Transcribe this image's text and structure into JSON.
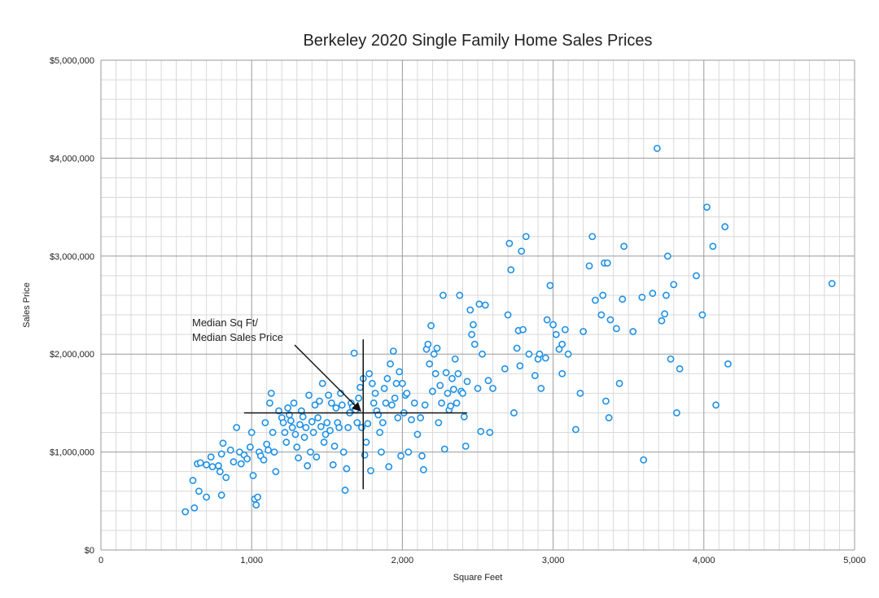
{
  "colors": {
    "point": "#1E90E6",
    "grid_major": "#9a9a9a",
    "grid_minor": "#d9d9d9",
    "median_lines": "#111111"
  },
  "chart_data": {
    "type": "scatter",
    "title": "Berkeley 2020 Single Family Home Sales Prices",
    "xlabel": "Square Feet",
    "ylabel": "Sales Price",
    "xlim": [
      0,
      5000
    ],
    "ylim": [
      0,
      5000000
    ],
    "x_ticks": [
      0,
      1000,
      2000,
      3000,
      4000,
      5000
    ],
    "x_tick_labels": [
      "0",
      "1,000",
      "2,000",
      "3,000",
      "4,000",
      "5,000"
    ],
    "y_ticks": [
      0,
      1000000,
      2000000,
      3000000,
      4000000,
      5000000
    ],
    "y_tick_labels": [
      "$0",
      "$1,000,000",
      "$2,000,000",
      "$3,000,000",
      "$4,000,000",
      "$5,000,000"
    ],
    "grid": true,
    "annotation": {
      "line1": "Median Sq Ft/",
      "line2": "Median Sales Price",
      "median_x": 1740,
      "median_y": 1400000
    },
    "median_hline": {
      "x_from": 950,
      "x_to": 2430,
      "y": 1400000
    },
    "median_vline": {
      "x": 1740,
      "y_from": 620000,
      "y_to": 2150000
    },
    "points": [
      [
        560,
        390000
      ],
      [
        620,
        430000
      ],
      [
        650,
        600000
      ],
      [
        700,
        540000
      ],
      [
        610,
        710000
      ],
      [
        640,
        880000
      ],
      [
        660,
        890000
      ],
      [
        700,
        870000
      ],
      [
        740,
        850000
      ],
      [
        780,
        860000
      ],
      [
        730,
        950000
      ],
      [
        800,
        980000
      ],
      [
        810,
        1090000
      ],
      [
        790,
        800000
      ],
      [
        800,
        560000
      ],
      [
        830,
        740000
      ],
      [
        860,
        1020000
      ],
      [
        880,
        900000
      ],
      [
        900,
        1250000
      ],
      [
        920,
        1000000
      ],
      [
        930,
        880000
      ],
      [
        950,
        970000
      ],
      [
        970,
        930000
      ],
      [
        990,
        1050000
      ],
      [
        1000,
        1200000
      ],
      [
        1010,
        760000
      ],
      [
        1020,
        520000
      ],
      [
        1030,
        460000
      ],
      [
        1040,
        540000
      ],
      [
        1050,
        1000000
      ],
      [
        1060,
        960000
      ],
      [
        1080,
        920000
      ],
      [
        1090,
        1300000
      ],
      [
        1100,
        1080000
      ],
      [
        1110,
        1020000
      ],
      [
        1120,
        1500000
      ],
      [
        1130,
        1600000
      ],
      [
        1140,
        1200000
      ],
      [
        1150,
        1000000
      ],
      [
        1160,
        800000
      ],
      [
        1180,
        1420000
      ],
      [
        1200,
        1350000
      ],
      [
        1210,
        1300000
      ],
      [
        1220,
        1200000
      ],
      [
        1230,
        1100000
      ],
      [
        1240,
        1450000
      ],
      [
        1250,
        1380000
      ],
      [
        1260,
        1320000
      ],
      [
        1270,
        1250000
      ],
      [
        1280,
        1500000
      ],
      [
        1290,
        1180000
      ],
      [
        1300,
        1050000
      ],
      [
        1310,
        940000
      ],
      [
        1320,
        1280000
      ],
      [
        1330,
        1420000
      ],
      [
        1340,
        1360000
      ],
      [
        1350,
        1150000
      ],
      [
        1360,
        1250000
      ],
      [
        1370,
        860000
      ],
      [
        1380,
        1580000
      ],
      [
        1390,
        1000000
      ],
      [
        1400,
        1310000
      ],
      [
        1410,
        1200000
      ],
      [
        1420,
        1480000
      ],
      [
        1430,
        950000
      ],
      [
        1440,
        1350000
      ],
      [
        1450,
        1520000
      ],
      [
        1460,
        1260000
      ],
      [
        1470,
        1700000
      ],
      [
        1480,
        1100000
      ],
      [
        1490,
        1180000
      ],
      [
        1500,
        1300000
      ],
      [
        1510,
        1580000
      ],
      [
        1520,
        1220000
      ],
      [
        1530,
        1500000
      ],
      [
        1540,
        870000
      ],
      [
        1550,
        1060000
      ],
      [
        1560,
        1450000
      ],
      [
        1570,
        1300000
      ],
      [
        1580,
        1250000
      ],
      [
        1590,
        1600000
      ],
      [
        1600,
        1480000
      ],
      [
        1610,
        1000000
      ],
      [
        1620,
        610000
      ],
      [
        1630,
        830000
      ],
      [
        1640,
        1250000
      ],
      [
        1650,
        1400000
      ],
      [
        1660,
        1500000
      ],
      [
        1670,
        1460000
      ],
      [
        1680,
        2010000
      ],
      [
        1690,
        1430000
      ],
      [
        1700,
        1300000
      ],
      [
        1710,
        1550000
      ],
      [
        1720,
        1660000
      ],
      [
        1730,
        1250000
      ],
      [
        1740,
        1750000
      ],
      [
        1750,
        970000
      ],
      [
        1760,
        1100000
      ],
      [
        1770,
        1290000
      ],
      [
        1780,
        1800000
      ],
      [
        1790,
        810000
      ],
      [
        1800,
        1700000
      ],
      [
        1810,
        1500000
      ],
      [
        1820,
        1600000
      ],
      [
        1830,
        1420000
      ],
      [
        1840,
        1380000
      ],
      [
        1850,
        1200000
      ],
      [
        1860,
        1000000
      ],
      [
        1870,
        1300000
      ],
      [
        1880,
        1650000
      ],
      [
        1890,
        1500000
      ],
      [
        1900,
        1750000
      ],
      [
        1910,
        850000
      ],
      [
        1920,
        1900000
      ],
      [
        1930,
        1480000
      ],
      [
        1940,
        2030000
      ],
      [
        1950,
        1550000
      ],
      [
        1960,
        1700000
      ],
      [
        1970,
        1350000
      ],
      [
        1980,
        1820000
      ],
      [
        1990,
        960000
      ],
      [
        2000,
        1700000
      ],
      [
        2010,
        1400000
      ],
      [
        2020,
        1580000
      ],
      [
        2030,
        1600000
      ],
      [
        2040,
        1000000
      ],
      [
        2060,
        1330000
      ],
      [
        2080,
        1500000
      ],
      [
        2100,
        1180000
      ],
      [
        2120,
        1350000
      ],
      [
        2130,
        960000
      ],
      [
        2140,
        820000
      ],
      [
        2150,
        1480000
      ],
      [
        2160,
        2050000
      ],
      [
        2170,
        2100000
      ],
      [
        2180,
        1900000
      ],
      [
        2190,
        2290000
      ],
      [
        2200,
        1620000
      ],
      [
        2210,
        2000000
      ],
      [
        2220,
        1800000
      ],
      [
        2230,
        2060000
      ],
      [
        2240,
        1300000
      ],
      [
        2250,
        1680000
      ],
      [
        2260,
        1500000
      ],
      [
        2270,
        2600000
      ],
      [
        2280,
        1030000
      ],
      [
        2290,
        1810000
      ],
      [
        2300,
        1600000
      ],
      [
        2310,
        1430000
      ],
      [
        2320,
        1470000
      ],
      [
        2330,
        1750000
      ],
      [
        2340,
        1640000
      ],
      [
        2350,
        1950000
      ],
      [
        2360,
        1500000
      ],
      [
        2370,
        1800000
      ],
      [
        2380,
        2600000
      ],
      [
        2390,
        1620000
      ],
      [
        2400,
        1600000
      ],
      [
        2410,
        1360000
      ],
      [
        2420,
        1060000
      ],
      [
        2430,
        1720000
      ],
      [
        2450,
        2450000
      ],
      [
        2460,
        2200000
      ],
      [
        2470,
        2300000
      ],
      [
        2480,
        2100000
      ],
      [
        2500,
        1650000
      ],
      [
        2510,
        2510000
      ],
      [
        2520,
        1210000
      ],
      [
        2530,
        2000000
      ],
      [
        2550,
        2500000
      ],
      [
        2570,
        1730000
      ],
      [
        2580,
        1200000
      ],
      [
        2600,
        1650000
      ],
      [
        2680,
        1850000
      ],
      [
        2700,
        2400000
      ],
      [
        2710,
        3130000
      ],
      [
        2720,
        2860000
      ],
      [
        2740,
        1400000
      ],
      [
        2760,
        2060000
      ],
      [
        2770,
        2240000
      ],
      [
        2780,
        1880000
      ],
      [
        2790,
        3050000
      ],
      [
        2800,
        2250000
      ],
      [
        2820,
        3200000
      ],
      [
        2840,
        2000000
      ],
      [
        2880,
        1780000
      ],
      [
        2900,
        1950000
      ],
      [
        2910,
        2000000
      ],
      [
        2920,
        1650000
      ],
      [
        2950,
        1960000
      ],
      [
        2960,
        2350000
      ],
      [
        2980,
        2700000
      ],
      [
        3000,
        2300000
      ],
      [
        3020,
        2200000
      ],
      [
        3040,
        2050000
      ],
      [
        3060,
        2100000
      ],
      [
        3060,
        1800000
      ],
      [
        3080,
        2250000
      ],
      [
        3100,
        2000000
      ],
      [
        3150,
        1230000
      ],
      [
        3180,
        1600000
      ],
      [
        3200,
        2230000
      ],
      [
        3240,
        2900000
      ],
      [
        3260,
        3200000
      ],
      [
        3280,
        2550000
      ],
      [
        3320,
        2400000
      ],
      [
        3330,
        2600000
      ],
      [
        3340,
        2930000
      ],
      [
        3350,
        1520000
      ],
      [
        3360,
        2930000
      ],
      [
        3370,
        1350000
      ],
      [
        3380,
        2350000
      ],
      [
        3420,
        2260000
      ],
      [
        3440,
        1700000
      ],
      [
        3460,
        2560000
      ],
      [
        3470,
        3100000
      ],
      [
        3530,
        2230000
      ],
      [
        3590,
        2580000
      ],
      [
        3600,
        920000
      ],
      [
        3660,
        2620000
      ],
      [
        3690,
        4100000
      ],
      [
        3720,
        2340000
      ],
      [
        3740,
        2410000
      ],
      [
        3750,
        2600000
      ],
      [
        3760,
        3000000
      ],
      [
        3780,
        1950000
      ],
      [
        3800,
        2710000
      ],
      [
        3820,
        1400000
      ],
      [
        3840,
        1850000
      ],
      [
        3950,
        2800000
      ],
      [
        3990,
        2400000
      ],
      [
        4020,
        3500000
      ],
      [
        4060,
        3100000
      ],
      [
        4080,
        1480000
      ],
      [
        4140,
        3300000
      ],
      [
        4160,
        1900000
      ],
      [
        4850,
        2720000
      ]
    ]
  }
}
